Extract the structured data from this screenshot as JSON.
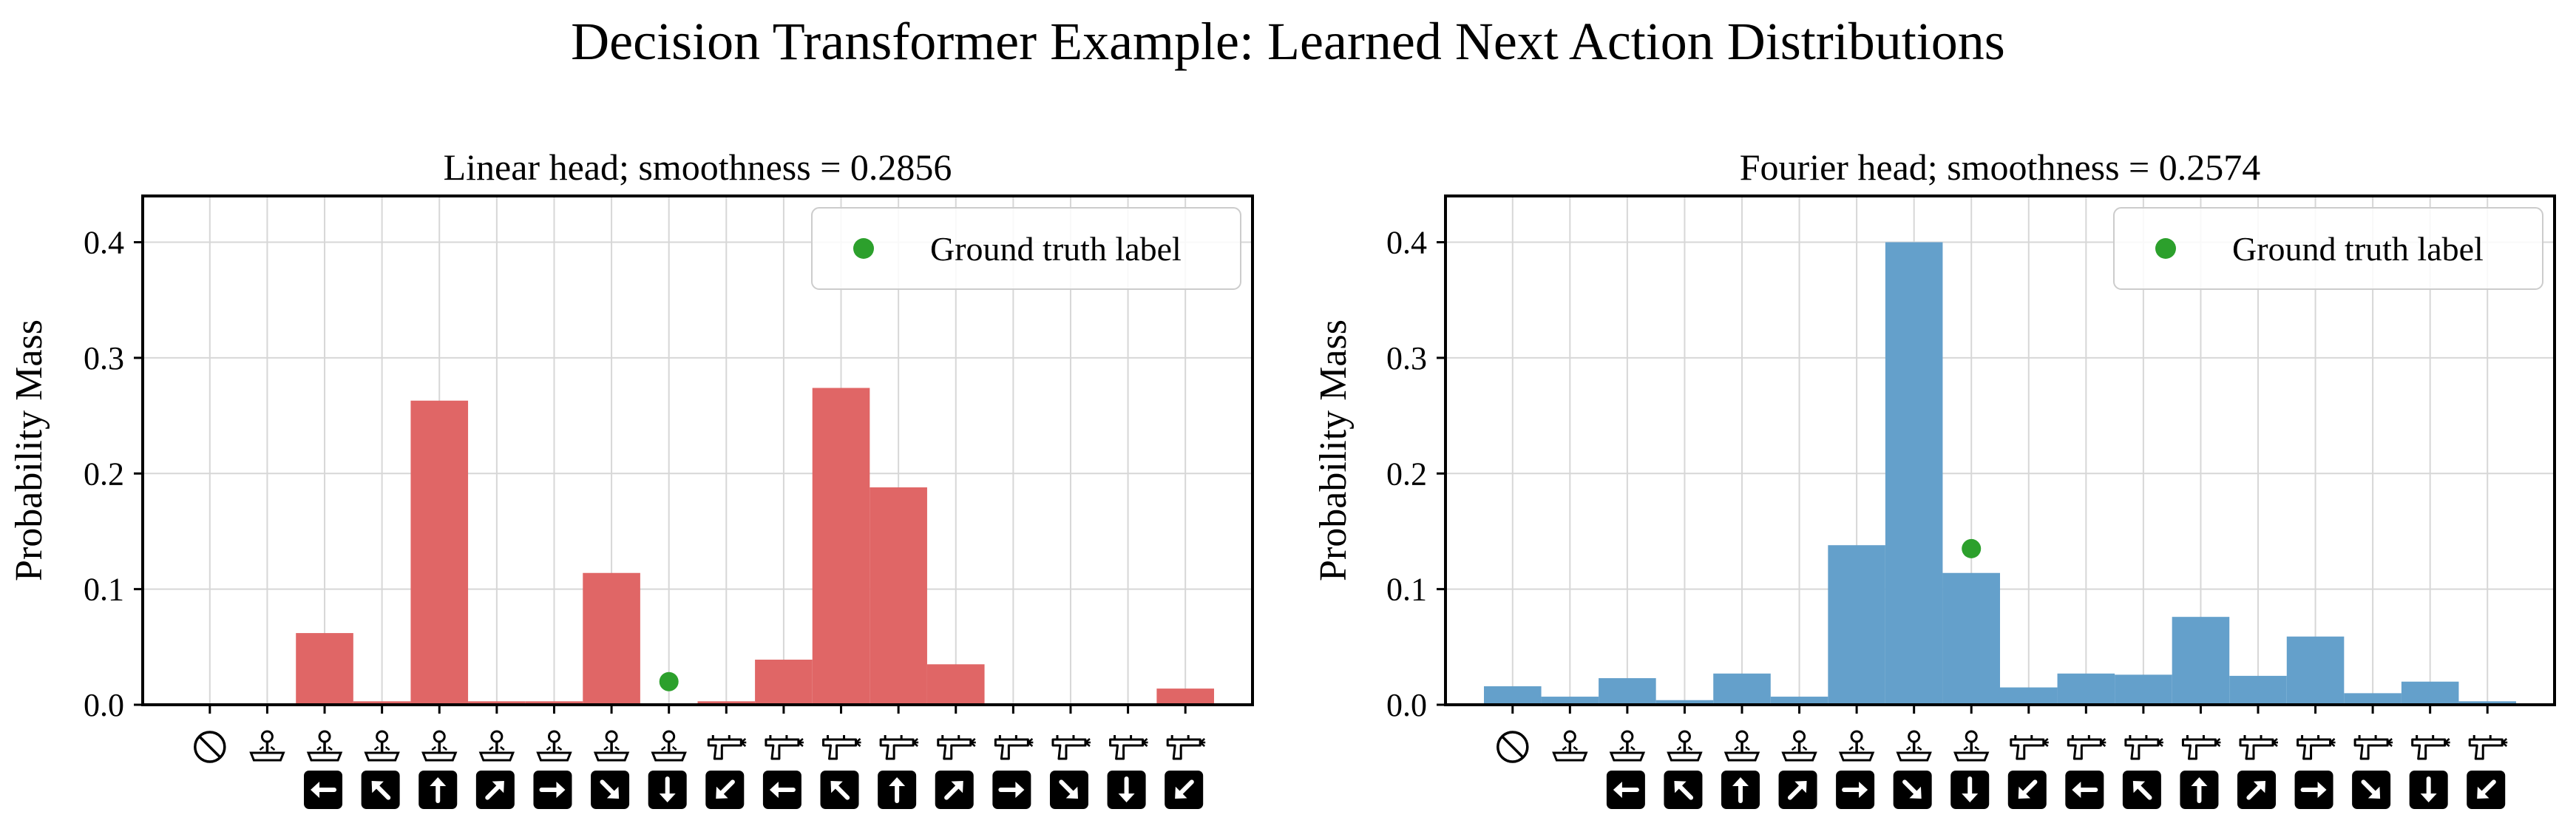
{
  "figure": {
    "title": "Decision Transformer Example: Learned Next Action Distributions"
  },
  "action_icons": {
    "bins": [
      {
        "kind": "noop",
        "arrow": null
      },
      {
        "kind": "joystick",
        "arrow": null
      },
      {
        "kind": "joystick",
        "arrow": "left"
      },
      {
        "kind": "joystick",
        "arrow": "up-left"
      },
      {
        "kind": "joystick",
        "arrow": "up"
      },
      {
        "kind": "joystick",
        "arrow": "up-right"
      },
      {
        "kind": "joystick",
        "arrow": "right"
      },
      {
        "kind": "joystick",
        "arrow": "down-right"
      },
      {
        "kind": "joystick",
        "arrow": "down"
      },
      {
        "kind": "fire-gun",
        "arrow": "down-left"
      },
      {
        "kind": "fire-gun",
        "arrow": "left"
      },
      {
        "kind": "fire-gun",
        "arrow": "up-left"
      },
      {
        "kind": "fire-gun",
        "arrow": "up"
      },
      {
        "kind": "fire-gun",
        "arrow": "up-right"
      },
      {
        "kind": "fire-gun",
        "arrow": "right"
      },
      {
        "kind": "fire-gun",
        "arrow": "down-right"
      },
      {
        "kind": "fire-gun",
        "arrow": "down"
      },
      {
        "kind": "fire-gun",
        "arrow": "down-left"
      }
    ],
    "colors": {
      "icon": "#000000",
      "arrow_box": "#000000",
      "arrow": "#ffffff"
    }
  },
  "chart_data": [
    {
      "type": "bar",
      "title": "Linear head; smoothness = 0.2856",
      "xlabel": "",
      "ylabel": "Probability Mass",
      "ylim": [
        0,
        0.44
      ],
      "yticks": [
        0.0,
        0.1,
        0.2,
        0.3,
        0.4
      ],
      "ytick_labels": [
        "0.0",
        "0.1",
        "0.2",
        "0.3",
        "0.4"
      ],
      "num_bins": 18,
      "grid": true,
      "legend_position": "top-right",
      "color": "#e06666",
      "values": [
        0.0,
        0.0,
        0.062,
        0.003,
        0.263,
        0.003,
        0.003,
        0.114,
        0.0,
        0.003,
        0.039,
        0.274,
        0.188,
        0.035,
        0.0,
        0.0,
        0.0,
        0.014
      ],
      "ground_truth": {
        "label": "Ground truth label",
        "bin": 8,
        "value": 0.02,
        "color": "#2ca02c"
      }
    },
    {
      "type": "bar",
      "title": "Fourier head; smoothness = 0.2574",
      "xlabel": "",
      "ylabel": "Probability Mass",
      "ylim": [
        0,
        0.44
      ],
      "yticks": [
        0.0,
        0.1,
        0.2,
        0.3,
        0.4
      ],
      "ytick_labels": [
        "0.0",
        "0.1",
        "0.2",
        "0.3",
        "0.4"
      ],
      "num_bins": 18,
      "grid": true,
      "legend_position": "top-right",
      "color": "#64a0cb",
      "values": [
        0.016,
        0.007,
        0.023,
        0.004,
        0.027,
        0.007,
        0.138,
        0.4,
        0.114,
        0.015,
        0.027,
        0.026,
        0.076,
        0.025,
        0.059,
        0.01,
        0.02,
        0.003
      ],
      "ground_truth": {
        "label": "Ground truth label",
        "bin": 8,
        "value": 0.135,
        "color": "#2ca02c"
      }
    }
  ]
}
